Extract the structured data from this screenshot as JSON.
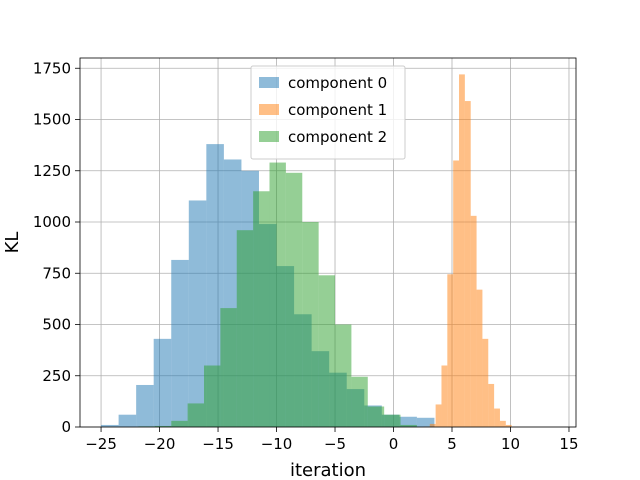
{
  "chart_data": {
    "type": "bar",
    "title": "",
    "xlabel": "iteration",
    "ylabel": "KL",
    "xlim": [
      -26.8,
      15.6
    ],
    "ylim": [
      0,
      1800
    ],
    "x_ticks": [
      -25,
      -20,
      -15,
      -10,
      -5,
      0,
      5,
      10,
      15
    ],
    "y_ticks": [
      0,
      250,
      500,
      750,
      1000,
      1250,
      1500,
      1750
    ],
    "grid": true,
    "legend_position": "top-center",
    "series": [
      {
        "name": "component 0",
        "color": "#1f77b4",
        "opacity": 0.5,
        "bins": [
          {
            "x0": -25.0,
            "x1": -23.5,
            "count": 10
          },
          {
            "x0": -23.5,
            "x1": -22.0,
            "count": 60
          },
          {
            "x0": -22.0,
            "x1": -20.5,
            "count": 205
          },
          {
            "x0": -20.5,
            "x1": -19.0,
            "count": 430
          },
          {
            "x0": -19.0,
            "x1": -17.5,
            "count": 815
          },
          {
            "x0": -17.5,
            "x1": -16.0,
            "count": 1105
          },
          {
            "x0": -16.0,
            "x1": -14.5,
            "count": 1380
          },
          {
            "x0": -14.5,
            "x1": -13.0,
            "count": 1305
          },
          {
            "x0": -13.0,
            "x1": -11.5,
            "count": 1250
          },
          {
            "x0": -11.5,
            "x1": -10.0,
            "count": 990
          },
          {
            "x0": -10.0,
            "x1": -8.5,
            "count": 785
          },
          {
            "x0": -8.5,
            "x1": -7.0,
            "count": 550
          },
          {
            "x0": -7.0,
            "x1": -5.5,
            "count": 370
          },
          {
            "x0": -5.5,
            "x1": -4.0,
            "count": 265
          },
          {
            "x0": -4.0,
            "x1": -2.5,
            "count": 185
          },
          {
            "x0": -2.5,
            "x1": -1.0,
            "count": 105
          },
          {
            "x0": -1.0,
            "x1": 0.5,
            "count": 60
          },
          {
            "x0": 0.5,
            "x1": 2.0,
            "count": 50
          },
          {
            "x0": 2.0,
            "x1": 3.5,
            "count": 45
          }
        ]
      },
      {
        "name": "component 1",
        "color": "#ff7f0e",
        "opacity": 0.5,
        "bins": [
          {
            "x0": 2.6,
            "x1": 3.1,
            "count": 2
          },
          {
            "x0": 3.1,
            "x1": 3.6,
            "count": 15
          },
          {
            "x0": 3.6,
            "x1": 4.1,
            "count": 110
          },
          {
            "x0": 4.1,
            "x1": 4.6,
            "count": 300
          },
          {
            "x0": 4.6,
            "x1": 5.1,
            "count": 745
          },
          {
            "x0": 5.1,
            "x1": 5.6,
            "count": 1300
          },
          {
            "x0": 5.6,
            "x1": 6.1,
            "count": 1720
          },
          {
            "x0": 6.1,
            "x1": 6.6,
            "count": 1590
          },
          {
            "x0": 6.6,
            "x1": 7.1,
            "count": 1030
          },
          {
            "x0": 7.1,
            "x1": 7.6,
            "count": 670
          },
          {
            "x0": 7.6,
            "x1": 8.1,
            "count": 430
          },
          {
            "x0": 8.1,
            "x1": 8.6,
            "count": 210
          },
          {
            "x0": 8.6,
            "x1": 9.1,
            "count": 90
          },
          {
            "x0": 9.1,
            "x1": 9.6,
            "count": 30
          },
          {
            "x0": 9.6,
            "x1": 10.1,
            "count": 10
          }
        ]
      },
      {
        "name": "component 2",
        "color": "#2ca02c",
        "opacity": 0.5,
        "bins": [
          {
            "x0": -21.8,
            "x1": -20.4,
            "count": 3
          },
          {
            "x0": -20.4,
            "x1": -19.0,
            "count": 5
          },
          {
            "x0": -19.0,
            "x1": -17.6,
            "count": 30
          },
          {
            "x0": -17.6,
            "x1": -16.2,
            "count": 115
          },
          {
            "x0": -16.2,
            "x1": -14.8,
            "count": 300
          },
          {
            "x0": -14.8,
            "x1": -13.4,
            "count": 580
          },
          {
            "x0": -13.4,
            "x1": -12.0,
            "count": 960
          },
          {
            "x0": -12.0,
            "x1": -10.6,
            "count": 1150
          },
          {
            "x0": -10.6,
            "x1": -9.2,
            "count": 1290
          },
          {
            "x0": -9.2,
            "x1": -7.8,
            "count": 1240
          },
          {
            "x0": -7.8,
            "x1": -6.4,
            "count": 1000
          },
          {
            "x0": -6.4,
            "x1": -5.0,
            "count": 740
          },
          {
            "x0": -5.0,
            "x1": -3.6,
            "count": 500
          },
          {
            "x0": -3.6,
            "x1": -2.2,
            "count": 245
          },
          {
            "x0": -2.2,
            "x1": -0.8,
            "count": 100
          },
          {
            "x0": -0.8,
            "x1": 0.6,
            "count": 60
          },
          {
            "x0": 0.6,
            "x1": 2.0,
            "count": 10
          }
        ]
      }
    ]
  }
}
